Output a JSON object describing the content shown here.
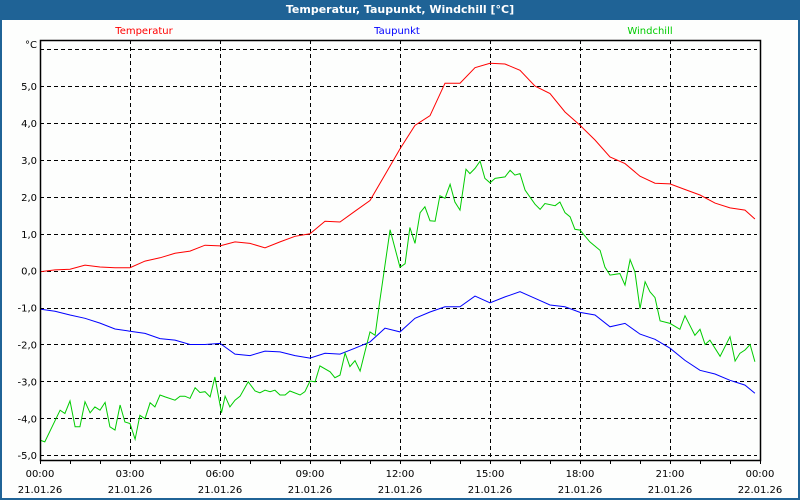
{
  "window": {
    "title": "Temperatur, Taupunkt, Windchill [°C]"
  },
  "chart_data": {
    "type": "line",
    "title": "Temperatur, Taupunkt, Windchill [°C]",
    "ylabel": "°C",
    "xlabel": "",
    "ylim": [
      -5.13,
      6.25
    ],
    "xlim_hours": [
      0,
      24
    ],
    "grid": true,
    "legend_placement": "top",
    "y_ticks": [
      5,
      4,
      3,
      2,
      1,
      0,
      -1,
      -2,
      -3,
      -4,
      -5
    ],
    "y_tick_labels": [
      "5,0",
      "4,0",
      "3,0",
      "2,0",
      "1,0",
      "0,0",
      "-1,0",
      "-2,0",
      "-3,0",
      "-4,0",
      "-5,0"
    ],
    "extra_gridlines_y": [
      6
    ],
    "x_ticks_hours": [
      0,
      3,
      6,
      9,
      12,
      15,
      18,
      21,
      24
    ],
    "x_tick_times": [
      "00:00",
      "03:00",
      "06:00",
      "09:00",
      "12:00",
      "15:00",
      "18:00",
      "21:00",
      "00:00"
    ],
    "x_tick_dates": [
      "21.01.26",
      "21.01.26",
      "21.01.26",
      "21.01.26",
      "21.01.26",
      "21.01.26",
      "21.01.26",
      "21.01.26",
      "22.01.26"
    ],
    "series": [
      {
        "name": "Temperatur",
        "color": "#ff0000",
        "x": [
          0,
          0.5,
          1,
          1.5,
          2,
          2.5,
          3,
          3.5,
          4,
          4.5,
          5,
          5.5,
          6,
          6.5,
          7,
          7.5,
          8,
          8.5,
          9,
          9.5,
          10,
          10.5,
          11,
          11.5,
          12,
          12.5,
          13,
          13.5,
          14,
          14.5,
          15,
          15.5,
          16,
          16.5,
          17,
          17.5,
          18,
          18.5,
          19,
          19.5,
          20,
          20.5,
          21,
          21.5,
          22,
          22.5,
          23,
          23.5,
          23.83
        ],
        "values": [
          -0.03,
          0.02,
          0.04,
          0.15,
          0.1,
          0.08,
          0.08,
          0.26,
          0.35,
          0.47,
          0.53,
          0.69,
          0.67,
          0.78,
          0.74,
          0.62,
          0.78,
          0.93,
          1.0,
          1.34,
          1.32,
          1.61,
          1.9,
          2.6,
          3.3,
          3.94,
          4.2,
          5.08,
          5.08,
          5.5,
          5.62,
          5.6,
          5.43,
          5.0,
          4.8,
          4.3,
          3.94,
          3.54,
          3.08,
          2.9,
          2.56,
          2.37,
          2.35,
          2.2,
          2.05,
          1.83,
          1.7,
          1.64,
          1.4
        ]
      },
      {
        "name": "Taupunkt",
        "color": "#0000ff",
        "x": [
          0,
          0.5,
          1,
          1.5,
          2,
          2.5,
          3,
          3.5,
          4,
          4.5,
          5,
          5.5,
          6,
          6.5,
          7,
          7.5,
          8,
          8.5,
          9,
          9.5,
          10,
          10.5,
          11,
          11.5,
          12,
          12.5,
          13,
          13.5,
          14,
          14.5,
          15,
          15.5,
          16,
          16.5,
          17,
          17.5,
          18,
          18.5,
          19,
          19.5,
          20,
          20.5,
          21,
          21.5,
          22,
          22.5,
          23,
          23.5,
          23.83
        ],
        "values": [
          -1.04,
          -1.1,
          -1.2,
          -1.29,
          -1.42,
          -1.58,
          -1.64,
          -1.7,
          -1.84,
          -1.88,
          -2.0,
          -2.0,
          -1.97,
          -2.26,
          -2.3,
          -2.18,
          -2.2,
          -2.3,
          -2.37,
          -2.24,
          -2.26,
          -2.1,
          -1.93,
          -1.56,
          -1.66,
          -1.29,
          -1.12,
          -0.98,
          -0.98,
          -0.69,
          -0.87,
          -0.71,
          -0.57,
          -0.75,
          -0.93,
          -0.98,
          -1.13,
          -1.2,
          -1.52,
          -1.43,
          -1.72,
          -1.86,
          -2.1,
          -2.43,
          -2.7,
          -2.8,
          -2.97,
          -3.1,
          -3.32
        ]
      },
      {
        "name": "Windchill",
        "color": "#00cc00",
        "x": [
          0,
          0.16,
          0.67,
          0.83,
          1.0,
          1.17,
          1.33,
          1.5,
          1.67,
          1.83,
          2.0,
          2.17,
          2.33,
          2.5,
          2.67,
          2.83,
          3.0,
          3.17,
          3.33,
          3.5,
          3.67,
          3.83,
          4.0,
          4.17,
          4.5,
          4.67,
          4.83,
          5.0,
          5.17,
          5.33,
          5.5,
          5.67,
          5.83,
          6.05,
          6.17,
          6.33,
          6.5,
          6.67,
          6.94,
          7.17,
          7.33,
          7.5,
          7.67,
          7.83,
          8.0,
          8.17,
          8.33,
          8.67,
          8.83,
          9.0,
          9.17,
          9.33,
          9.67,
          9.83,
          10.0,
          10.17,
          10.33,
          10.5,
          10.67,
          10.83,
          11.0,
          11.17,
          11.33,
          11.67,
          12.0,
          12.17,
          12.33,
          12.5,
          12.67,
          12.83,
          13.0,
          13.17,
          13.33,
          13.5,
          13.67,
          13.83,
          14.0,
          14.2,
          14.33,
          14.5,
          14.67,
          14.83,
          15.0,
          15.17,
          15.5,
          15.67,
          15.83,
          16.0,
          16.17,
          16.5,
          16.67,
          16.83,
          17.17,
          17.33,
          17.5,
          17.67,
          17.83,
          18.0,
          18.33,
          18.67,
          18.83,
          19.0,
          19.33,
          19.5,
          19.67,
          19.83,
          20.0,
          20.17,
          20.33,
          20.5,
          20.67,
          21.0,
          21.33,
          21.5,
          21.83,
          22.0,
          22.17,
          22.33,
          22.67,
          23.0,
          23.17,
          23.33,
          23.5,
          23.67,
          23.83
        ],
        "values": [
          -4.59,
          -4.64,
          -3.78,
          -3.87,
          -3.53,
          -4.23,
          -4.23,
          -3.55,
          -3.85,
          -3.69,
          -3.78,
          -3.57,
          -4.23,
          -4.32,
          -3.64,
          -4.1,
          -4.14,
          -4.57,
          -3.92,
          -4.01,
          -3.58,
          -3.69,
          -3.37,
          -3.42,
          -3.51,
          -3.4,
          -3.4,
          -3.46,
          -3.17,
          -3.3,
          -3.28,
          -3.42,
          -2.88,
          -3.85,
          -3.4,
          -3.69,
          -3.51,
          -3.4,
          -3.01,
          -3.26,
          -3.31,
          -3.24,
          -3.28,
          -3.24,
          -3.37,
          -3.37,
          -3.26,
          -3.37,
          -3.28,
          -2.99,
          -3.01,
          -2.58,
          -2.74,
          -2.9,
          -2.83,
          -2.23,
          -2.6,
          -2.44,
          -2.72,
          -2.2,
          -1.66,
          -1.75,
          -0.8,
          1.11,
          0.09,
          0.19,
          1.17,
          0.74,
          1.57,
          1.73,
          1.35,
          1.34,
          2.03,
          1.96,
          2.34,
          1.86,
          1.64,
          2.75,
          2.63,
          2.77,
          2.97,
          2.5,
          2.38,
          2.5,
          2.54,
          2.72,
          2.59,
          2.63,
          2.18,
          1.8,
          1.66,
          1.82,
          1.76,
          1.86,
          1.57,
          1.46,
          1.12,
          1.1,
          0.78,
          0.55,
          0.1,
          -0.12,
          -0.08,
          -0.39,
          0.3,
          -0.03,
          -1.03,
          -0.3,
          -0.57,
          -0.73,
          -1.36,
          -1.43,
          -1.59,
          -1.22,
          -1.75,
          -1.59,
          -2.0,
          -1.88,
          -2.32,
          -1.79,
          -2.45,
          -2.24,
          -2.15,
          -2.0,
          -2.47
        ]
      }
    ]
  }
}
